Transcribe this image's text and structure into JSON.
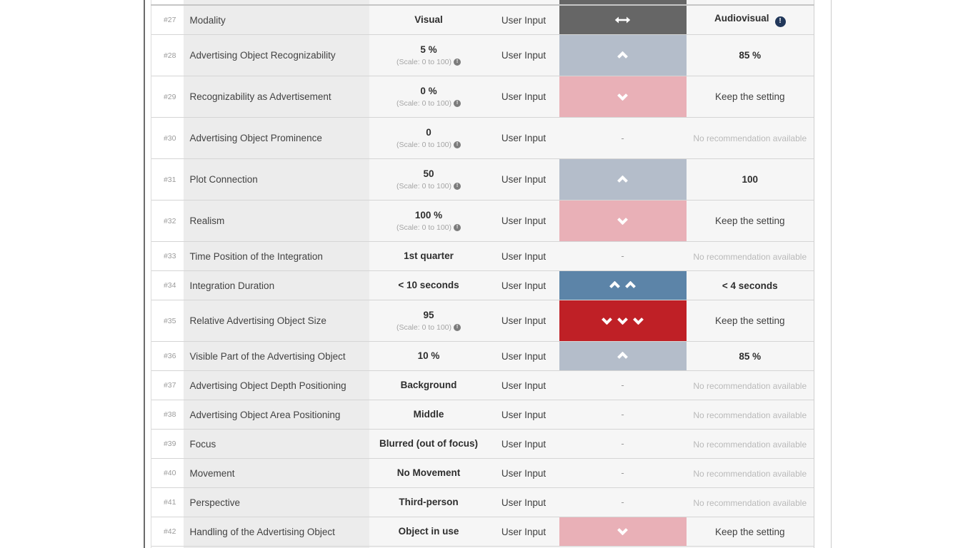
{
  "colors": {
    "trend_neutral": "#666666",
    "trend_up_weak": "#b4bdca",
    "trend_down_weak": "#e9b0b7",
    "trend_up_strong": "#5c84a8",
    "trend_down_strong": "#bf2026",
    "row_bg": "#f6f6f6",
    "param_bg": "#ececec"
  },
  "icons": {
    "scale_note_glyph": "!",
    "recommendation_info_glyph": "!",
    "trend_horizontal": "left-right-arrow",
    "trend_up": "chevron-up",
    "trend_down": "chevron-down"
  },
  "table": {
    "dash": "-",
    "rows": [
      {
        "num": "#27",
        "param": "Modality",
        "value": "Visual",
        "note": "",
        "source": "User Input",
        "trend": {
          "bg": "trend_neutral",
          "dir": "h",
          "count": 1
        },
        "rec": {
          "text": "Audiovisual",
          "bold": true,
          "icon": true
        }
      },
      {
        "num": "#28",
        "param": "Advertising Object Recognizability",
        "value": "5 %",
        "note": "(Scale: 0 to 100)",
        "source": "User Input",
        "trend": {
          "bg": "trend_up_weak",
          "dir": "up",
          "count": 1
        },
        "rec": {
          "text": "85 %",
          "bold": true
        }
      },
      {
        "num": "#29",
        "param": "Recognizability as Advertisement",
        "value": "0 %",
        "note": "(Scale: 0 to 100)",
        "source": "User Input",
        "trend": {
          "bg": "trend_down_weak",
          "dir": "down",
          "count": 1
        },
        "rec": {
          "text": "Keep the setting"
        }
      },
      {
        "num": "#30",
        "param": "Advertising Object Prominence",
        "value": "0",
        "note": "(Scale: 0 to 100)",
        "source": "User Input",
        "trend": {
          "dash": true
        },
        "rec": {
          "text": "No recommendation available",
          "muted": true
        }
      },
      {
        "num": "#31",
        "param": "Plot Connection",
        "value": "50",
        "note": "(Scale: 0 to 100)",
        "source": "User Input",
        "trend": {
          "bg": "trend_up_weak",
          "dir": "up",
          "count": 1
        },
        "rec": {
          "text": "100",
          "bold": true
        }
      },
      {
        "num": "#32",
        "param": "Realism",
        "value": "100 %",
        "note": "(Scale: 0 to 100)",
        "source": "User Input",
        "trend": {
          "bg": "trend_down_weak",
          "dir": "down",
          "count": 1
        },
        "rec": {
          "text": "Keep the setting"
        }
      },
      {
        "num": "#33",
        "param": "Time Position of the Integration",
        "value": "1st quarter",
        "note": "",
        "source": "User Input",
        "trend": {
          "dash": true
        },
        "rec": {
          "text": "No recommendation available",
          "muted": true
        }
      },
      {
        "num": "#34",
        "param": "Integration Duration",
        "value": "< 10 seconds",
        "note": "",
        "source": "User Input",
        "trend": {
          "bg": "trend_up_strong",
          "dir": "up",
          "count": 2
        },
        "rec": {
          "text": "< 4 seconds",
          "bold": true
        }
      },
      {
        "num": "#35",
        "param": "Relative Advertising Object Size",
        "value": "95",
        "note": "(Scale: 0 to 100)",
        "source": "User Input",
        "trend": {
          "bg": "trend_down_strong",
          "dir": "down",
          "count": 3
        },
        "rec": {
          "text": "Keep the setting"
        }
      },
      {
        "num": "#36",
        "param": "Visible Part of the Advertising Object",
        "value": "10 %",
        "note": "",
        "source": "User Input",
        "trend": {
          "bg": "trend_up_weak",
          "dir": "up",
          "count": 1
        },
        "rec": {
          "text": "85 %",
          "bold": true
        }
      },
      {
        "num": "#37",
        "param": "Advertising Object Depth Positioning",
        "value": "Background",
        "note": "",
        "source": "User Input",
        "trend": {
          "dash": true
        },
        "rec": {
          "text": "No recommendation available",
          "muted": true
        }
      },
      {
        "num": "#38",
        "param": "Advertising Object Area Positioning",
        "value": "Middle",
        "note": "",
        "source": "User Input",
        "trend": {
          "dash": true
        },
        "rec": {
          "text": "No recommendation available",
          "muted": true
        }
      },
      {
        "num": "#39",
        "param": "Focus",
        "value": "Blurred (out of focus)",
        "note": "",
        "source": "User Input",
        "trend": {
          "dash": true
        },
        "rec": {
          "text": "No recommendation available",
          "muted": true
        }
      },
      {
        "num": "#40",
        "param": "Movement",
        "value": "No Movement",
        "note": "",
        "source": "User Input",
        "trend": {
          "dash": true
        },
        "rec": {
          "text": "No recommendation available",
          "muted": true
        }
      },
      {
        "num": "#41",
        "param": "Perspective",
        "value": "Third-person",
        "note": "",
        "source": "User Input",
        "trend": {
          "dash": true
        },
        "rec": {
          "text": "No recommendation available",
          "muted": true
        }
      },
      {
        "num": "#42",
        "param": "Handling of the Advertising Object",
        "value": "Object in use",
        "note": "",
        "source": "User Input",
        "trend": {
          "bg": "trend_down_weak",
          "dir": "down",
          "count": 1
        },
        "rec": {
          "text": "Keep the setting"
        }
      }
    ]
  }
}
